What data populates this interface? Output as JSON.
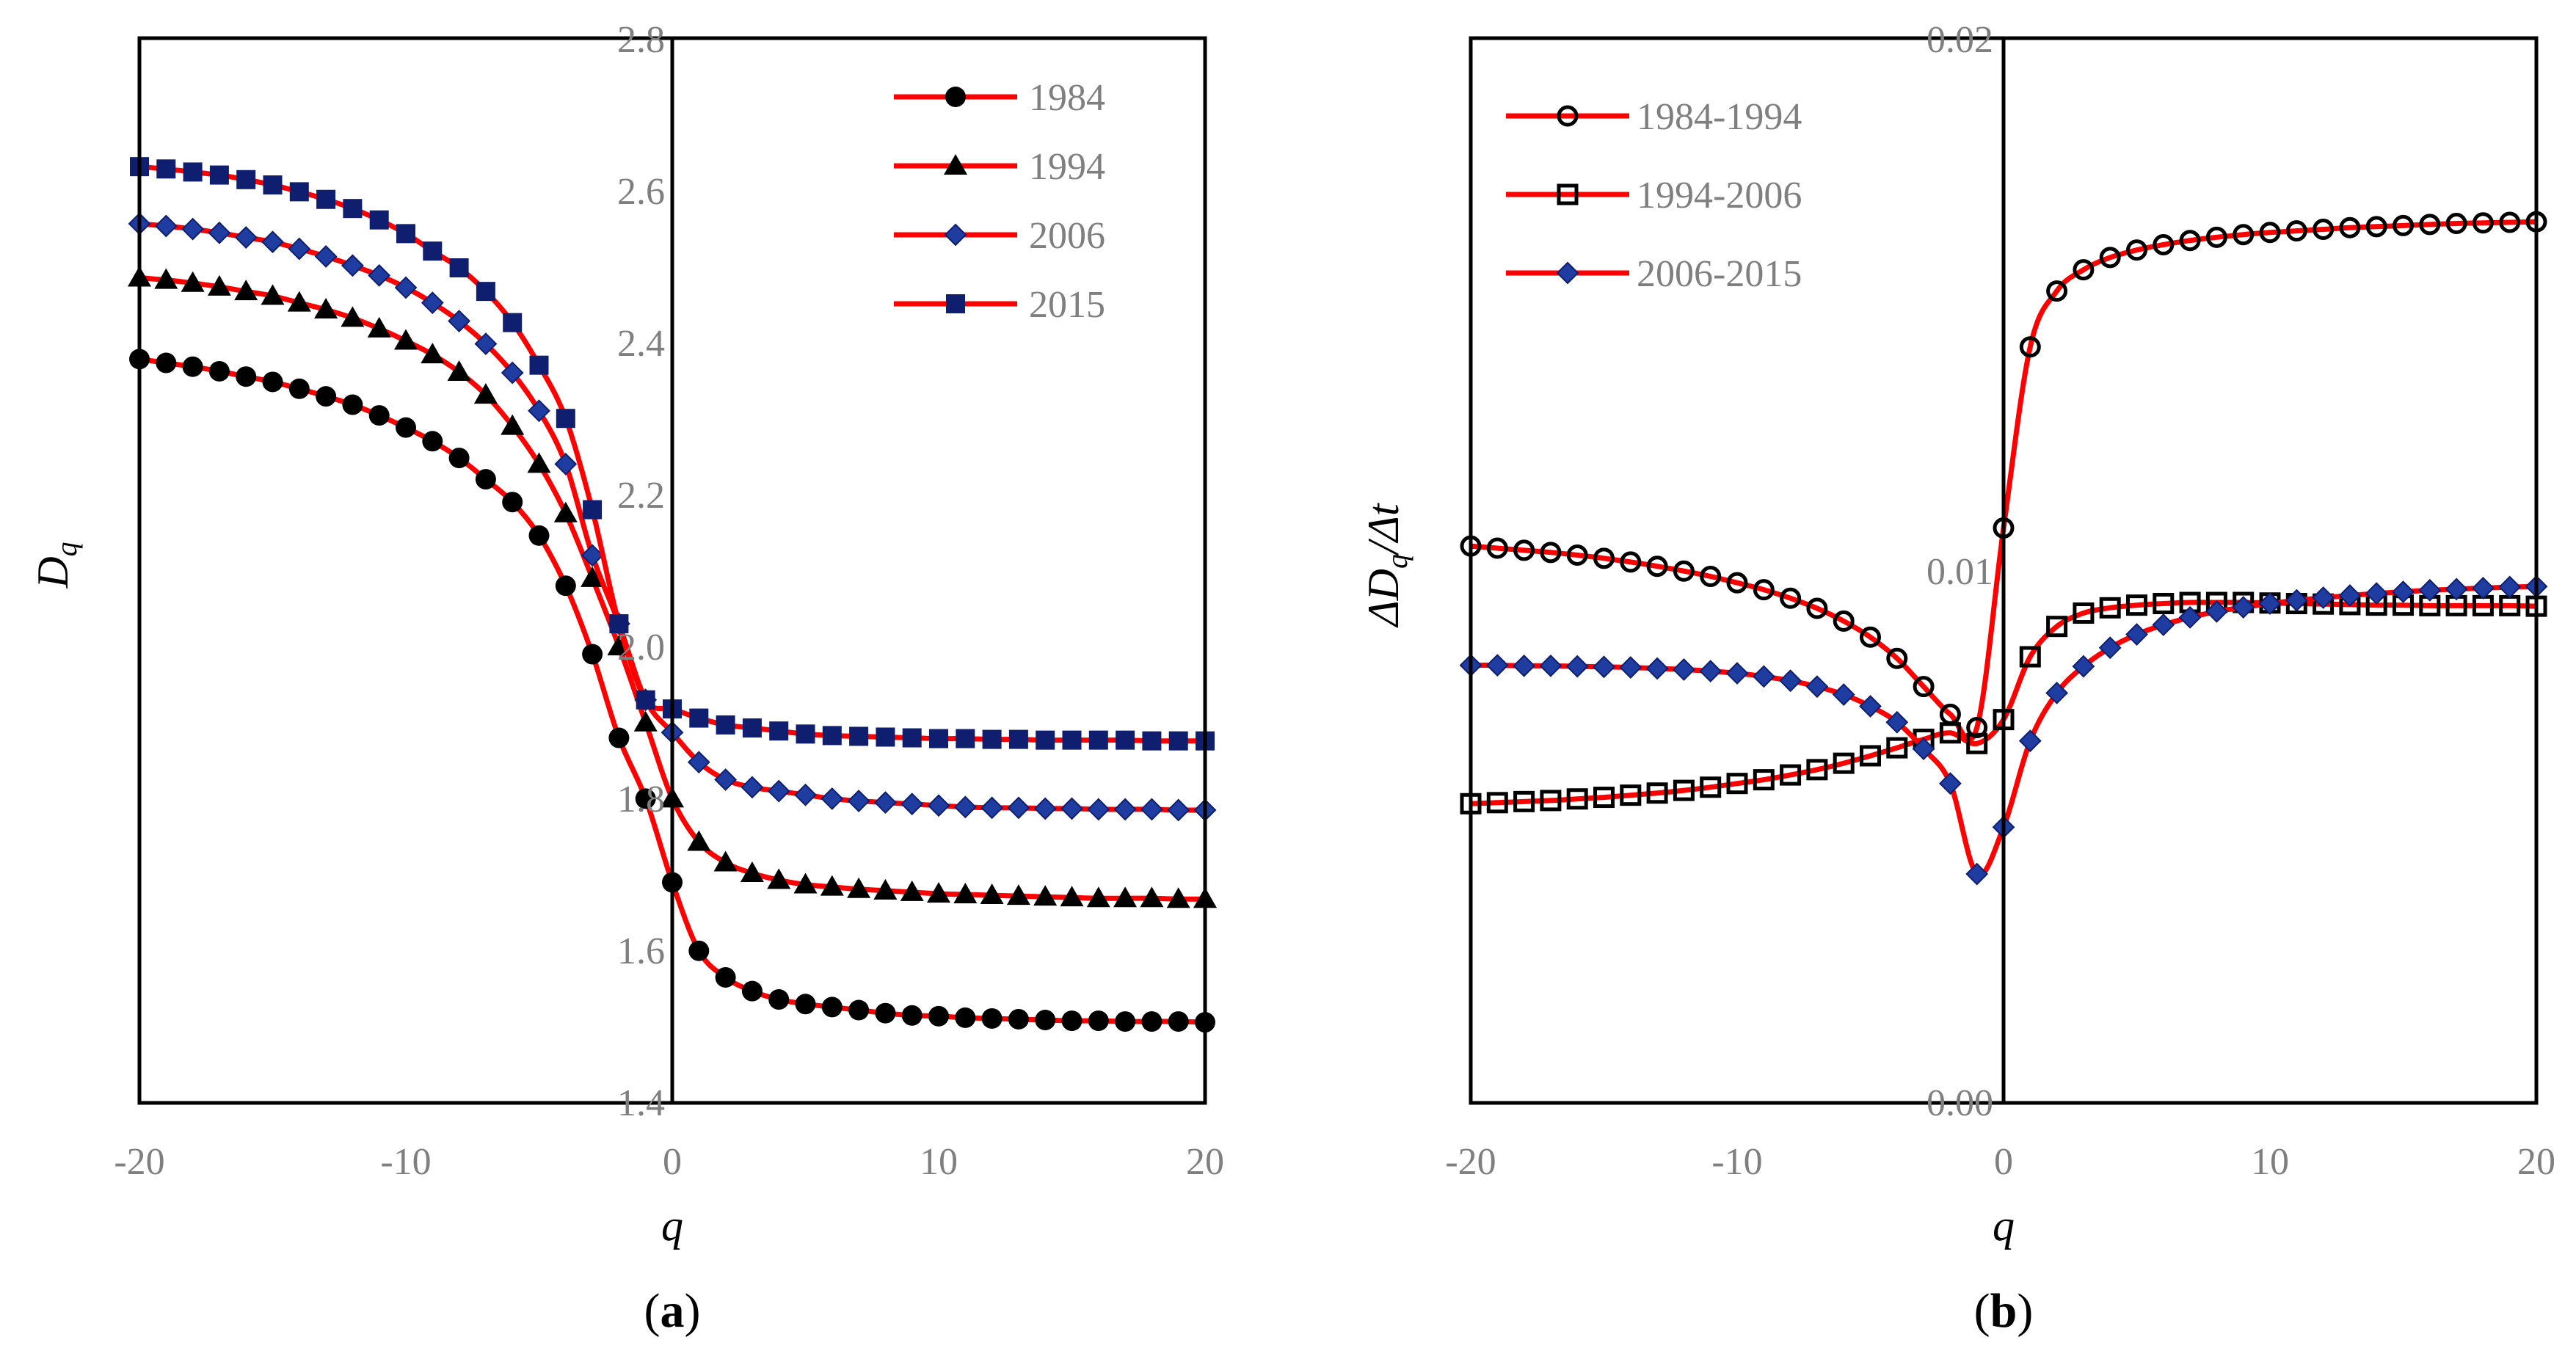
{
  "colors": {
    "line": "#ff0000",
    "black_marker": "#000000",
    "navy_marker": "#0f1e6e",
    "blue_marker": "#1f3ca0",
    "tick_text": "#7f7f7f"
  },
  "chart_data": [
    {
      "type": "line",
      "panel_label": {
        "open": "(",
        "letter": "a",
        "close": ")"
      },
      "xlabel": "q",
      "ylabel": {
        "main": "D",
        "sub": "q"
      },
      "xlim": [
        -20,
        20
      ],
      "ylim": [
        1.4,
        2.8
      ],
      "xticks": [
        -20,
        -10,
        0,
        10,
        20
      ],
      "xtick_labels": [
        "-20",
        "-10",
        "0",
        "10",
        "20"
      ],
      "yticks": [
        1.4,
        1.6,
        1.8,
        2.0,
        2.2,
        2.4,
        2.6,
        2.8
      ],
      "ytick_labels": [
        "1.4",
        "1.6",
        "1.8",
        "2.0",
        "2.2",
        "2.4",
        "2.6",
        "2.8"
      ],
      "grid": false,
      "legend_position": "top-right",
      "x": [
        -20,
        -19,
        -18,
        -17,
        -16,
        -15,
        -14,
        -13,
        -12,
        -11,
        -10,
        -9,
        -8,
        -7,
        -6,
        -5,
        -4,
        -3,
        -2,
        -1,
        0,
        1,
        2,
        3,
        4,
        5,
        6,
        7,
        8,
        9,
        10,
        11,
        12,
        13,
        14,
        15,
        16,
        17,
        18,
        19,
        20
      ],
      "series": [
        {
          "name": "1984",
          "marker": "circle-filled",
          "values": [
            2.378,
            2.373,
            2.368,
            2.362,
            2.355,
            2.348,
            2.339,
            2.329,
            2.318,
            2.304,
            2.288,
            2.27,
            2.248,
            2.22,
            2.19,
            2.146,
            2.08,
            1.99,
            1.88,
            1.8,
            1.69,
            1.6,
            1.565,
            1.547,
            1.536,
            1.53,
            1.526,
            1.522,
            1.518,
            1.515,
            1.514,
            1.512,
            1.511,
            1.51,
            1.509,
            1.508,
            1.508,
            1.507,
            1.507,
            1.507,
            1.506
          ]
        },
        {
          "name": "1994",
          "marker": "triangle-filled",
          "values": [
            2.485,
            2.482,
            2.478,
            2.473,
            2.467,
            2.461,
            2.452,
            2.443,
            2.432,
            2.418,
            2.402,
            2.384,
            2.361,
            2.331,
            2.29,
            2.24,
            2.175,
            2.09,
            2.0,
            1.9,
            1.8,
            1.743,
            1.716,
            1.702,
            1.693,
            1.687,
            1.684,
            1.681,
            1.679,
            1.677,
            1.675,
            1.674,
            1.673,
            1.672,
            1.671,
            1.67,
            1.669,
            1.669,
            1.669,
            1.668,
            1.668
          ]
        },
        {
          "name": "2006",
          "marker": "diamond-filled",
          "values": [
            2.556,
            2.553,
            2.549,
            2.544,
            2.538,
            2.532,
            2.523,
            2.513,
            2.501,
            2.488,
            2.472,
            2.452,
            2.428,
            2.398,
            2.36,
            2.31,
            2.24,
            2.12,
            2.03,
            1.93,
            1.887,
            1.848,
            1.825,
            1.815,
            1.81,
            1.805,
            1.8,
            1.797,
            1.795,
            1.793,
            1.791,
            1.789,
            1.788,
            1.788,
            1.787,
            1.787,
            1.786,
            1.786,
            1.786,
            1.785,
            1.785
          ]
        },
        {
          "name": "2015",
          "marker": "square-filled",
          "values": [
            2.631,
            2.628,
            2.624,
            2.62,
            2.614,
            2.607,
            2.598,
            2.588,
            2.576,
            2.561,
            2.543,
            2.52,
            2.498,
            2.467,
            2.426,
            2.37,
            2.3,
            2.18,
            2.03,
            1.93,
            1.918,
            1.906,
            1.897,
            1.893,
            1.889,
            1.885,
            1.883,
            1.882,
            1.881,
            1.88,
            1.879,
            1.879,
            1.878,
            1.878,
            1.877,
            1.877,
            1.877,
            1.877,
            1.876,
            1.876,
            1.876
          ]
        }
      ]
    },
    {
      "type": "line",
      "panel_label": {
        "open": "(",
        "letter": "b",
        "close": ")"
      },
      "xlabel": "q",
      "ylabel": {
        "d1": "ΔD",
        "sub": "q",
        "rest": "/Δt"
      },
      "xlim": [
        -20,
        20
      ],
      "ylim": [
        0.0,
        0.02
      ],
      "xticks": [
        -20,
        -10,
        0,
        10,
        20
      ],
      "xtick_labels": [
        "-20",
        "-10",
        "0",
        "10",
        "20"
      ],
      "yticks": [
        0.0,
        0.01,
        0.02
      ],
      "ytick_labels": [
        "0.00",
        "0.01",
        "0.02"
      ],
      "grid": false,
      "legend_position": "top-left",
      "x": [
        -20,
        -19,
        -18,
        -17,
        -16,
        -15,
        -14,
        -13,
        -12,
        -11,
        -10,
        -9,
        -8,
        -7,
        -6,
        -5,
        -4,
        -3,
        -2,
        -1,
        0,
        1,
        2,
        3,
        4,
        5,
        6,
        7,
        8,
        9,
        10,
        11,
        12,
        13,
        14,
        15,
        16,
        17,
        18,
        19,
        20
      ],
      "series": [
        {
          "name": "1984-1994",
          "marker": "circle-open",
          "values": [
            0.01046,
            0.01042,
            0.01038,
            0.01034,
            0.01029,
            0.01023,
            0.01016,
            0.01008,
            0.00999,
            0.00989,
            0.00977,
            0.00964,
            0.00948,
            0.00929,
            0.00905,
            0.00875,
            0.00835,
            0.00782,
            0.0073,
            0.00705,
            0.0108,
            0.0142,
            0.01525,
            0.01565,
            0.01588,
            0.01602,
            0.01612,
            0.0162,
            0.01626,
            0.01631,
            0.01635,
            0.01638,
            0.01641,
            0.01644,
            0.01646,
            0.01648,
            0.0165,
            0.01652,
            0.01653,
            0.01654,
            0.01655
          ]
        },
        {
          "name": "1994-2006",
          "marker": "square-open",
          "values": [
            0.00562,
            0.00564,
            0.00566,
            0.00568,
            0.00571,
            0.00574,
            0.00578,
            0.00582,
            0.00587,
            0.00593,
            0.006,
            0.00607,
            0.00616,
            0.00626,
            0.00638,
            0.00652,
            0.00667,
            0.00683,
            0.00695,
            0.00675,
            0.0072,
            0.00838,
            0.00895,
            0.0092,
            0.0093,
            0.00935,
            0.00938,
            0.0094,
            0.0094,
            0.0094,
            0.00939,
            0.00938,
            0.00937,
            0.00936,
            0.00935,
            0.00935,
            0.00934,
            0.00934,
            0.00934,
            0.00934,
            0.00933
          ]
        },
        {
          "name": "2006-2015",
          "marker": "diamond-navy",
          "values": [
            0.00822,
            0.00822,
            0.00821,
            0.00821,
            0.0082,
            0.00819,
            0.00818,
            0.00816,
            0.00814,
            0.00811,
            0.00807,
            0.00801,
            0.00793,
            0.00782,
            0.00767,
            0.00745,
            0.00715,
            0.00665,
            0.006,
            0.0043,
            0.00518,
            0.0068,
            0.0077,
            0.0082,
            0.00855,
            0.0088,
            0.00898,
            0.00912,
            0.00923,
            0.00931,
            0.00938,
            0.00944,
            0.00949,
            0.00953,
            0.00957,
            0.0096,
            0.00963,
            0.00965,
            0.00967,
            0.00969,
            0.0097
          ]
        }
      ]
    }
  ]
}
